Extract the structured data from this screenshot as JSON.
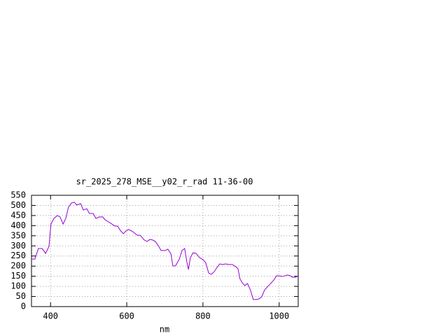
{
  "chart_data": {
    "type": "line",
    "title": "sr_2025_278_MSE__y02_r_rad 11-36-00",
    "x_label": "nm",
    "x": [
      350,
      359,
      368,
      378,
      387,
      396,
      401,
      409,
      418,
      425,
      433,
      440,
      447,
      455,
      462,
      469,
      479,
      486,
      495,
      502,
      512,
      519,
      528,
      537,
      543,
      552,
      561,
      569,
      576,
      583,
      591,
      598,
      605,
      616,
      627,
      635,
      646,
      653,
      661,
      668,
      675,
      683,
      690,
      701,
      708,
      716,
      721,
      728,
      738,
      745,
      752,
      758,
      762,
      767,
      774,
      782,
      791,
      800,
      807,
      815,
      822,
      830,
      837,
      844,
      852,
      859,
      868,
      877,
      886,
      892,
      897,
      903,
      910,
      917,
      925,
      932,
      940,
      947,
      954,
      962,
      969,
      976,
      986,
      993,
      1000,
      1008,
      1015,
      1022,
      1030,
      1035,
      1043,
      1050
    ],
    "series": [
      {
        "color": "#9400d3",
        "values": [
          235,
          235,
          287,
          287,
          263,
          298,
          408,
          436,
          450,
          443,
          408,
          436,
          491,
          512,
          516,
          502,
          509,
          477,
          484,
          460,
          460,
          436,
          443,
          443,
          429,
          419,
          408,
          398,
          398,
          377,
          360,
          374,
          381,
          370,
          353,
          353,
          329,
          322,
          332,
          329,
          322,
          301,
          277,
          277,
          284,
          260,
          201,
          201,
          235,
          277,
          287,
          218,
          183,
          242,
          266,
          263,
          242,
          232,
          218,
          166,
          159,
          173,
          194,
          211,
          208,
          211,
          208,
          208,
          197,
          187,
          138,
          118,
          104,
          114,
          80,
          35,
          35,
          38,
          48,
          83,
          97,
          111,
          131,
          152,
          152,
          149,
          152,
          156,
          152,
          145,
          145,
          152
        ]
      }
    ],
    "xlim": [
      350,
      1050
    ],
    "ylim": [
      0,
      550
    ],
    "xticks": [
      400,
      600,
      800,
      1000
    ],
    "yticks": [
      0,
      50,
      100,
      150,
      200,
      250,
      300,
      350,
      400,
      450,
      500,
      550
    ],
    "grid": true
  }
}
